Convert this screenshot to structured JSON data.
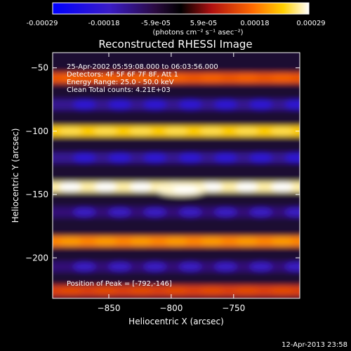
{
  "colors": {
    "background": "#000000",
    "foreground": "#ffffff"
  },
  "colorbar": {
    "ticks": [
      "-0.00029",
      "-0.00018",
      "-5.9e-05",
      "5.9e-05",
      "0.00018",
      "0.00029"
    ],
    "unit_label": "(photons cm⁻² s⁻¹ asec⁻²)",
    "range": [
      -0.00029,
      0.00029
    ]
  },
  "chart_data": {
    "type": "heatmap",
    "title": "Reconstructed RHESSI Image",
    "xlabel": "Heliocentric X (arcsec)",
    "ylabel": "Heliocentric Y (arcsec)",
    "xlim": [
      -895,
      -697
    ],
    "ylim": [
      -232,
      -38
    ],
    "x_ticks": [
      -850,
      -800,
      -750
    ],
    "y_ticks": [
      -50,
      -100,
      -150,
      -200
    ],
    "x_tick_labels": [
      "−850",
      "−800",
      "−750"
    ],
    "y_tick_labels": [
      "−50",
      "−100",
      "−150",
      "−200"
    ],
    "annotations": [
      "25-Apr-2002 05:59:08.000 to 06:03:56.000",
      "Detectors: 4F 5F 6F 7F 8F, Att 1",
      "Energy Range: 25.0 - 50.0 keV",
      "Clean     Total counts: 4.21E+03"
    ],
    "peak_label": "Position of Peak = [-792,-146]",
    "peak_position": [
      -792,
      -146
    ],
    "bands": [
      {
        "y": -58,
        "value": 0.00014
      },
      {
        "y": -79,
        "value": -0.00012
      },
      {
        "y": -100,
        "value": 0.00023
      },
      {
        "y": -121,
        "value": -0.00012
      },
      {
        "y": -144,
        "value": 0.00027
      },
      {
        "y": -164,
        "value": -0.0001
      },
      {
        "y": -187,
        "value": 0.00018
      },
      {
        "y": -207,
        "value": -0.0001
      },
      {
        "y": -226,
        "value": 0.00012
      }
    ]
  },
  "footer": {
    "timestamp": "12-Apr-2013 23:58"
  }
}
